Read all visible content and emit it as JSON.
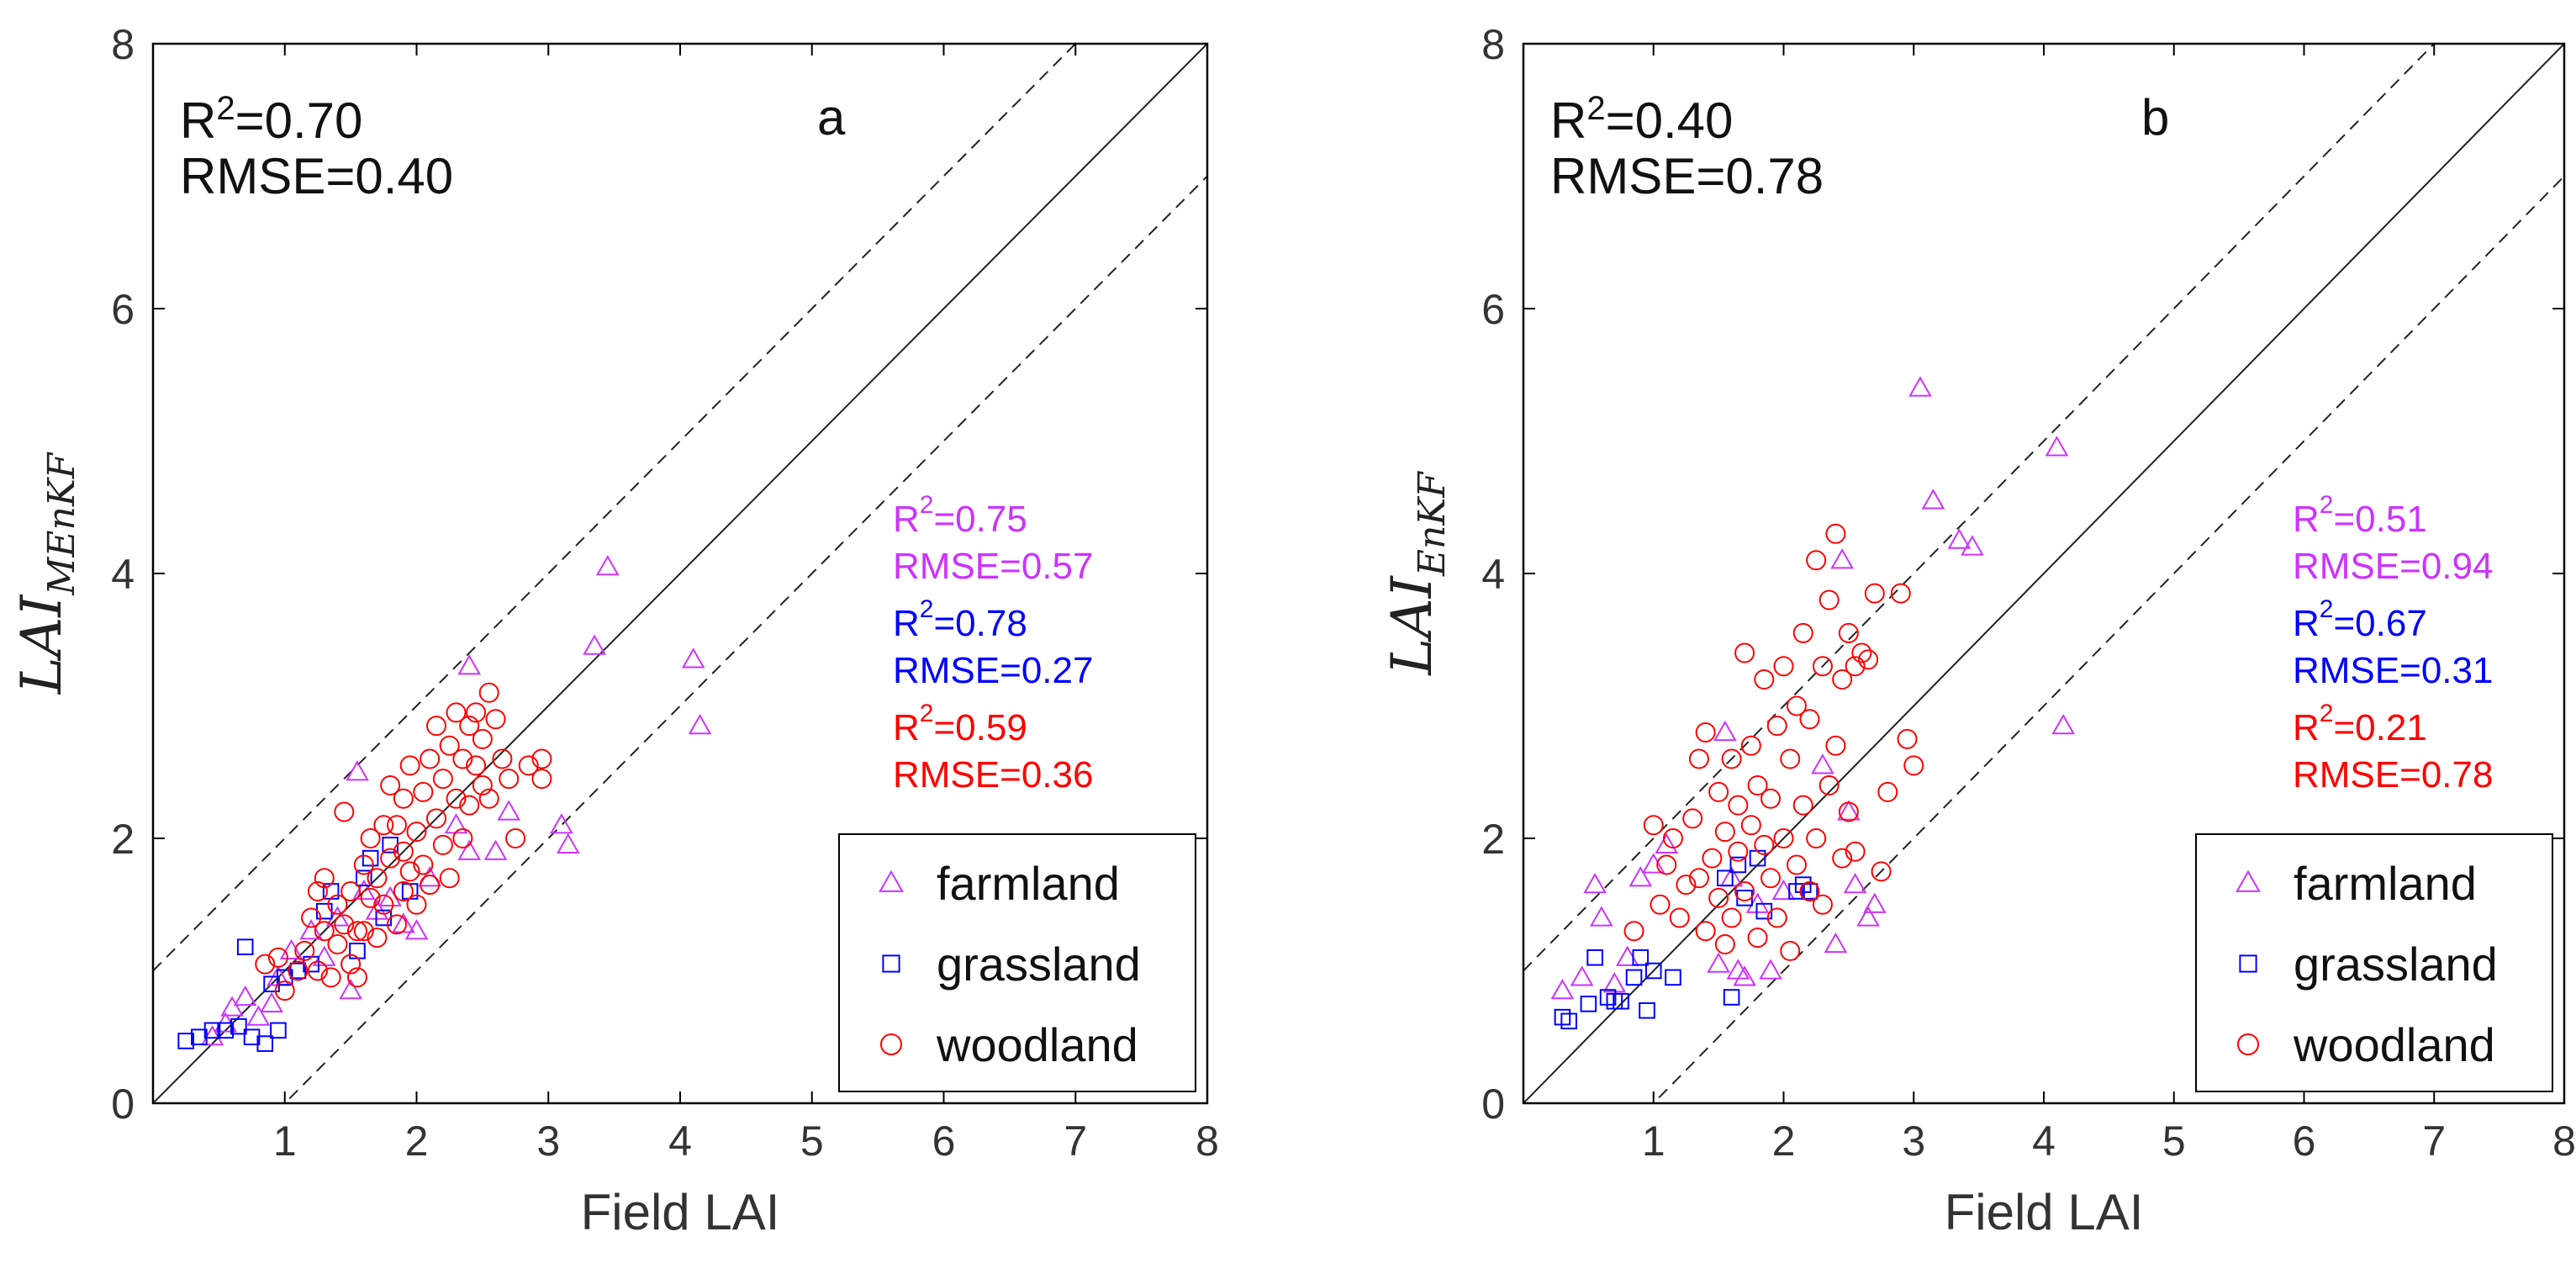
{
  "chart_data": [
    {
      "type": "scatter",
      "panel_label": "a",
      "xlabel": "Field LAI",
      "ylabel": "LAI",
      "ylabel_subscript": "MEnKF",
      "xlim": [
        0,
        8
      ],
      "ylim": [
        0,
        8
      ],
      "xticks": [
        "1",
        "2",
        "3",
        "4",
        "5",
        "6",
        "7",
        "8"
      ],
      "yticks": [
        "0",
        "2",
        "4",
        "6",
        "8"
      ],
      "grid": false,
      "legend_position": "bottom-right",
      "reference_lines": [
        {
          "type": "1:1",
          "intercept": 0,
          "style": "solid"
        },
        {
          "type": "+1",
          "intercept": 1,
          "style": "dashed"
        },
        {
          "type": "-1",
          "intercept": -1,
          "style": "dashed"
        }
      ],
      "overall_stats": {
        "r2": "R<sup>2</sup>=0.70",
        "rmse": "RMSE=0.40"
      },
      "series": [
        {
          "name": "farmland",
          "marker": "triangle",
          "color": "#cc33ff",
          "r2": "R<sup>2</sup>=0.75",
          "rmse": "RMSE=0.57",
          "points": [
            [
              0.45,
              0.5
            ],
            [
              0.55,
              0.6
            ],
            [
              0.6,
              0.72
            ],
            [
              0.7,
              0.8
            ],
            [
              0.8,
              0.65
            ],
            [
              0.9,
              0.75
            ],
            [
              0.95,
              0.95
            ],
            [
              1.05,
              1.15
            ],
            [
              1.2,
              1.3
            ],
            [
              1.3,
              1.1
            ],
            [
              1.4,
              1.4
            ],
            [
              1.5,
              0.85
            ],
            [
              1.55,
              2.5
            ],
            [
              1.6,
              1.6
            ],
            [
              1.7,
              1.45
            ],
            [
              1.8,
              1.55
            ],
            [
              1.9,
              1.35
            ],
            [
              2.0,
              1.3
            ],
            [
              2.1,
              1.7
            ],
            [
              2.3,
              2.1
            ],
            [
              2.4,
              3.3
            ],
            [
              2.4,
              1.9
            ],
            [
              2.6,
              1.9
            ],
            [
              2.7,
              2.2
            ],
            [
              3.1,
              2.1
            ],
            [
              3.15,
              1.95
            ],
            [
              3.35,
              3.45
            ],
            [
              3.45,
              4.05
            ],
            [
              4.1,
              3.35
            ],
            [
              4.15,
              2.85
            ]
          ]
        },
        {
          "name": "grassland",
          "marker": "square",
          "color": "#0000ff",
          "r2": "R<sup>2</sup>=0.78",
          "rmse": "RMSE=0.27",
          "points": [
            [
              0.25,
              0.47
            ],
            [
              0.35,
              0.5
            ],
            [
              0.45,
              0.55
            ],
            [
              0.55,
              0.55
            ],
            [
              0.65,
              0.58
            ],
            [
              0.7,
              1.18
            ],
            [
              0.75,
              0.5
            ],
            [
              0.85,
              0.45
            ],
            [
              0.9,
              0.9
            ],
            [
              0.95,
              0.55
            ],
            [
              1.0,
              0.95
            ],
            [
              1.1,
              1.0
            ],
            [
              1.2,
              1.05
            ],
            [
              1.3,
              1.45
            ],
            [
              1.35,
              1.6
            ],
            [
              1.55,
              1.15
            ],
            [
              1.6,
              1.7
            ],
            [
              1.65,
              1.85
            ],
            [
              1.75,
              1.4
            ],
            [
              1.8,
              1.95
            ],
            [
              1.95,
              1.6
            ]
          ]
        },
        {
          "name": "woodland",
          "marker": "circle",
          "color": "#ff0000",
          "r2": "R<sup>2</sup>=0.59",
          "rmse": "RMSE=0.36",
          "points": [
            [
              0.85,
              1.05
            ],
            [
              0.95,
              1.1
            ],
            [
              1.0,
              0.85
            ],
            [
              1.1,
              1.0
            ],
            [
              1.15,
              1.15
            ],
            [
              1.2,
              1.4
            ],
            [
              1.25,
              1.6
            ],
            [
              1.25,
              1.0
            ],
            [
              1.3,
              1.3
            ],
            [
              1.3,
              1.7
            ],
            [
              1.35,
              0.95
            ],
            [
              1.4,
              1.2
            ],
            [
              1.4,
              1.5
            ],
            [
              1.45,
              1.35
            ],
            [
              1.45,
              2.2
            ],
            [
              1.5,
              1.05
            ],
            [
              1.5,
              1.6
            ],
            [
              1.55,
              1.3
            ],
            [
              1.55,
              0.95
            ],
            [
              1.6,
              1.8
            ],
            [
              1.6,
              1.3
            ],
            [
              1.65,
              1.55
            ],
            [
              1.65,
              2.0
            ],
            [
              1.7,
              1.7
            ],
            [
              1.7,
              1.25
            ],
            [
              1.75,
              2.1
            ],
            [
              1.75,
              1.5
            ],
            [
              1.8,
              1.85
            ],
            [
              1.8,
              2.4
            ],
            [
              1.85,
              1.35
            ],
            [
              1.85,
              2.1
            ],
            [
              1.9,
              1.6
            ],
            [
              1.9,
              2.3
            ],
            [
              1.9,
              1.9
            ],
            [
              1.95,
              1.75
            ],
            [
              1.95,
              2.55
            ],
            [
              2.0,
              2.05
            ],
            [
              2.0,
              1.5
            ],
            [
              2.05,
              1.8
            ],
            [
              2.05,
              2.35
            ],
            [
              2.1,
              2.6
            ],
            [
              2.1,
              1.65
            ],
            [
              2.15,
              2.15
            ],
            [
              2.15,
              2.85
            ],
            [
              2.2,
              1.95
            ],
            [
              2.2,
              2.45
            ],
            [
              2.25,
              2.7
            ],
            [
              2.25,
              1.7
            ],
            [
              2.3,
              2.3
            ],
            [
              2.3,
              2.95
            ],
            [
              2.35,
              2.0
            ],
            [
              2.35,
              2.6
            ],
            [
              2.4,
              2.85
            ],
            [
              2.4,
              2.25
            ],
            [
              2.45,
              2.55
            ],
            [
              2.45,
              2.95
            ],
            [
              2.5,
              2.4
            ],
            [
              2.5,
              2.75
            ],
            [
              2.55,
              3.1
            ],
            [
              2.55,
              2.3
            ],
            [
              2.6,
              2.9
            ],
            [
              2.65,
              2.6
            ],
            [
              2.7,
              2.45
            ],
            [
              2.75,
              2.0
            ],
            [
              2.85,
              2.55
            ],
            [
              2.95,
              2.45
            ],
            [
              2.95,
              2.6
            ]
          ]
        }
      ]
    },
    {
      "type": "scatter",
      "panel_label": "b",
      "xlabel": "Field LAI",
      "ylabel": "LAI",
      "ylabel_subscript": "EnKF",
      "xlim": [
        0,
        8
      ],
      "ylim": [
        0,
        8
      ],
      "xticks": [
        "1",
        "2",
        "3",
        "4",
        "5",
        "6",
        "7",
        "8"
      ],
      "yticks": [
        "0",
        "2",
        "4",
        "6",
        "8"
      ],
      "grid": false,
      "legend_position": "bottom-right",
      "reference_lines": [
        {
          "type": "1:1",
          "intercept": 0,
          "style": "solid"
        },
        {
          "type": "+1",
          "intercept": 1,
          "style": "dashed"
        },
        {
          "type": "-1",
          "intercept": -1,
          "style": "dashed"
        }
      ],
      "overall_stats": {
        "r2": "R<sup>2</sup>=0.40",
        "rmse": "RMSE=0.78"
      },
      "series": [
        {
          "name": "farmland",
          "marker": "triangle",
          "color": "#cc33ff",
          "r2": "R<sup>2</sup>=0.51",
          "rmse": "RMSE=0.94",
          "points": [
            [
              0.3,
              0.85
            ],
            [
              0.45,
              0.95
            ],
            [
              0.55,
              1.65
            ],
            [
              0.6,
              1.4
            ],
            [
              0.7,
              0.9
            ],
            [
              0.8,
              1.1
            ],
            [
              0.9,
              1.7
            ],
            [
              1.0,
              1.8
            ],
            [
              1.1,
              1.95
            ],
            [
              1.5,
              1.05
            ],
            [
              1.55,
              2.8
            ],
            [
              1.6,
              1.7
            ],
            [
              1.65,
              1.0
            ],
            [
              1.7,
              0.95
            ],
            [
              1.8,
              1.5
            ],
            [
              1.9,
              1.0
            ],
            [
              2.0,
              1.6
            ],
            [
              2.3,
              2.55
            ],
            [
              2.4,
              1.2
            ],
            [
              2.45,
              4.1
            ],
            [
              2.5,
              2.2
            ],
            [
              2.55,
              1.65
            ],
            [
              2.65,
              1.4
            ],
            [
              2.7,
              1.5
            ],
            [
              3.05,
              5.4
            ],
            [
              3.15,
              4.55
            ],
            [
              3.35,
              4.25
            ],
            [
              3.45,
              4.2
            ],
            [
              4.1,
              4.95
            ],
            [
              4.15,
              2.85
            ]
          ]
        },
        {
          "name": "grassland",
          "marker": "square",
          "color": "#0000ff",
          "r2": "R<sup>2</sup>=0.67",
          "rmse": "RMSE=0.31",
          "points": [
            [
              0.3,
              0.65
            ],
            [
              0.35,
              0.62
            ],
            [
              0.5,
              0.75
            ],
            [
              0.55,
              1.1
            ],
            [
              0.65,
              0.8
            ],
            [
              0.7,
              0.77
            ],
            [
              0.75,
              0.77
            ],
            [
              0.85,
              0.95
            ],
            [
              0.9,
              1.1
            ],
            [
              0.95,
              0.7
            ],
            [
              1.0,
              1.0
            ],
            [
              1.15,
              0.95
            ],
            [
              1.55,
              1.7
            ],
            [
              1.6,
              0.8
            ],
            [
              1.65,
              1.8
            ],
            [
              1.7,
              1.55
            ],
            [
              1.8,
              1.85
            ],
            [
              1.85,
              1.45
            ],
            [
              2.1,
              1.6
            ],
            [
              2.15,
              1.65
            ],
            [
              2.2,
              1.6
            ]
          ]
        },
        {
          "name": "woodland",
          "marker": "circle",
          "color": "#ff0000",
          "r2": "R<sup>2</sup>=0.21",
          "rmse": "RMSE=0.78",
          "points": [
            [
              0.85,
              1.3
            ],
            [
              1.0,
              2.1
            ],
            [
              1.05,
              1.5
            ],
            [
              1.1,
              1.8
            ],
            [
              1.15,
              2.0
            ],
            [
              1.2,
              1.4
            ],
            [
              1.25,
              1.65
            ],
            [
              1.3,
              2.15
            ],
            [
              1.35,
              2.6
            ],
            [
              1.35,
              1.7
            ],
            [
              1.4,
              1.3
            ],
            [
              1.4,
              2.8
            ],
            [
              1.45,
              1.85
            ],
            [
              1.5,
              2.35
            ],
            [
              1.5,
              1.55
            ],
            [
              1.55,
              2.05
            ],
            [
              1.55,
              1.2
            ],
            [
              1.6,
              2.6
            ],
            [
              1.6,
              1.4
            ],
            [
              1.65,
              1.9
            ],
            [
              1.65,
              2.25
            ],
            [
              1.7,
              1.6
            ],
            [
              1.7,
              3.4
            ],
            [
              1.75,
              2.1
            ],
            [
              1.75,
              2.7
            ],
            [
              1.8,
              1.25
            ],
            [
              1.8,
              2.4
            ],
            [
              1.85,
              3.2
            ],
            [
              1.85,
              1.95
            ],
            [
              1.9,
              2.3
            ],
            [
              1.9,
              1.7
            ],
            [
              1.95,
              2.85
            ],
            [
              1.95,
              1.4
            ],
            [
              2.0,
              3.3
            ],
            [
              2.0,
              2.0
            ],
            [
              2.05,
              1.15
            ],
            [
              2.05,
              2.6
            ],
            [
              2.1,
              3.0
            ],
            [
              2.1,
              1.8
            ],
            [
              2.15,
              2.25
            ],
            [
              2.15,
              3.55
            ],
            [
              2.2,
              1.6
            ],
            [
              2.2,
              2.9
            ],
            [
              2.25,
              4.1
            ],
            [
              2.25,
              2.0
            ],
            [
              2.3,
              3.3
            ],
            [
              2.3,
              1.5
            ],
            [
              2.35,
              2.4
            ],
            [
              2.35,
              3.8
            ],
            [
              2.4,
              4.3
            ],
            [
              2.4,
              2.7
            ],
            [
              2.45,
              3.2
            ],
            [
              2.45,
              1.85
            ],
            [
              2.5,
              3.55
            ],
            [
              2.5,
              2.2
            ],
            [
              2.55,
              3.3
            ],
            [
              2.55,
              1.9
            ],
            [
              2.6,
              3.4
            ],
            [
              2.65,
              3.35
            ],
            [
              2.7,
              3.85
            ],
            [
              2.75,
              1.75
            ],
            [
              2.8,
              2.35
            ],
            [
              2.9,
              3.85
            ],
            [
              2.95,
              2.75
            ],
            [
              3.0,
              2.55
            ]
          ]
        }
      ]
    }
  ]
}
